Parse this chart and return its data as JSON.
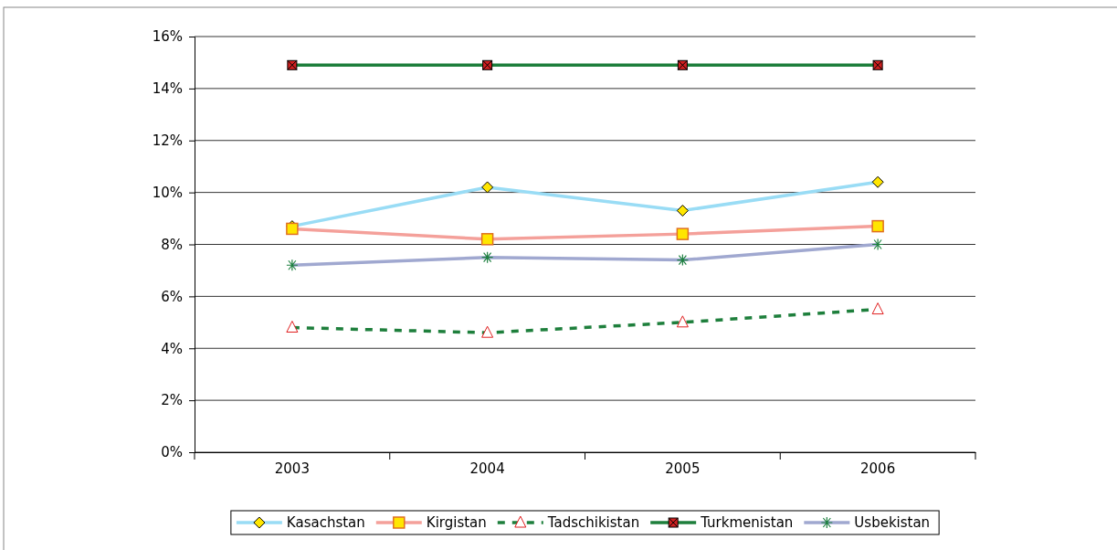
{
  "chart_data": {
    "type": "line",
    "categories": [
      "2003",
      "2004",
      "2005",
      "2006"
    ],
    "ylim": [
      0,
      16
    ],
    "yticks": [
      {
        "value": 0,
        "label": "0%"
      },
      {
        "value": 2,
        "label": "2%"
      },
      {
        "value": 4,
        "label": "4%"
      },
      {
        "value": 6,
        "label": "6%"
      },
      {
        "value": 8,
        "label": "8%"
      },
      {
        "value": 10,
        "label": "10%"
      },
      {
        "value": 12,
        "label": "12%"
      },
      {
        "value": 14,
        "label": "14%"
      },
      {
        "value": 16,
        "label": "16%"
      }
    ],
    "grid": "y",
    "legend": "bottom",
    "series": [
      {
        "name": "Kasachstan",
        "color": "#99dcf5",
        "marker": "diamond",
        "values": [
          8.7,
          10.2,
          9.3,
          10.4
        ]
      },
      {
        "name": "Kirgistan",
        "color": "#f4a09a",
        "marker": "square",
        "values": [
          8.6,
          8.2,
          8.4,
          8.7
        ]
      },
      {
        "name": "Tadschikistan",
        "color": "#1e7f3c",
        "marker": "triangle",
        "line_style": "dashed",
        "values": [
          4.8,
          4.6,
          5.0,
          5.5
        ]
      },
      {
        "name": "Turkmenistan",
        "color": "#1e7f3c",
        "marker": "square",
        "values": [
          14.9,
          14.9,
          14.9,
          14.9
        ]
      },
      {
        "name": "Usbekistan",
        "color": "#a0a8d0",
        "marker": "cross",
        "values": [
          7.2,
          7.5,
          7.4,
          8.0
        ]
      }
    ]
  }
}
